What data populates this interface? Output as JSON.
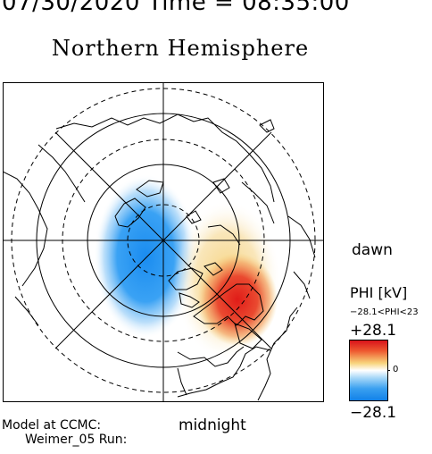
{
  "header": {
    "datetime": "07/30/2020 Time = 08:35:00",
    "title": "Northern Hemisphere"
  },
  "map": {
    "hemisphere": "Northern",
    "projection": "polar",
    "labels": {
      "dawn": "dawn",
      "midnight": "midnight"
    },
    "potential_cells": [
      {
        "sign": "negative",
        "side": "dusk",
        "color": "#1a8cf0"
      },
      {
        "sign": "positive",
        "side": "dawn",
        "color": "#e83020"
      }
    ],
    "colors": {
      "land_outline": "#000000",
      "grid": "#000000",
      "positive": "#e02020",
      "negative": "#1a8cf0"
    }
  },
  "colorbar": {
    "title": "PHI [kV]",
    "range_text": "−28.1<PHI<23",
    "max_label": "+28.1",
    "mid_label": "0",
    "min_label": "−28.1",
    "max_value": 28.1,
    "min_value": -28.1
  },
  "footer": {
    "model_line1": "Model at CCMC:",
    "model_line2": "Weimer_05 Run:"
  }
}
